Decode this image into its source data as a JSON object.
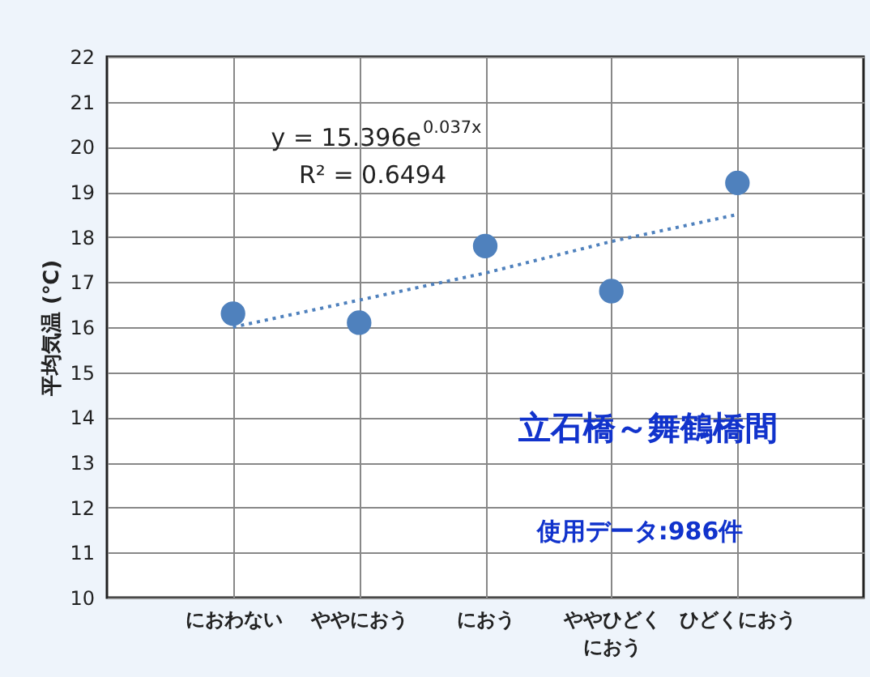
{
  "chart_data": {
    "type": "scatter",
    "categories": [
      "におわない",
      "ややにおう",
      "におう",
      "ややひどくにおう",
      "ひどくにおう"
    ],
    "ylabel": "平均気温 (℃)",
    "ylim": [
      10,
      22
    ],
    "yticks": [
      10,
      11,
      12,
      13,
      14,
      15,
      16,
      17,
      18,
      19,
      20,
      21,
      22
    ],
    "grid": true,
    "series": [
      {
        "marker": "circle",
        "color": "#4f81bd",
        "values": [
          16.3,
          16.1,
          17.8,
          16.8,
          19.2
        ]
      },
      {
        "type": "line",
        "line_style": "dotted",
        "color": "#4f81bd",
        "values": [
          16.0,
          16.6,
          17.2,
          17.9,
          18.5
        ]
      }
    ],
    "annotations": [
      "y = 15.396e$^{0.037x}$",
      "R² = 0.6494",
      "立石橋～舞鶴橋間",
      "使用データ:986件"
    ]
  }
}
